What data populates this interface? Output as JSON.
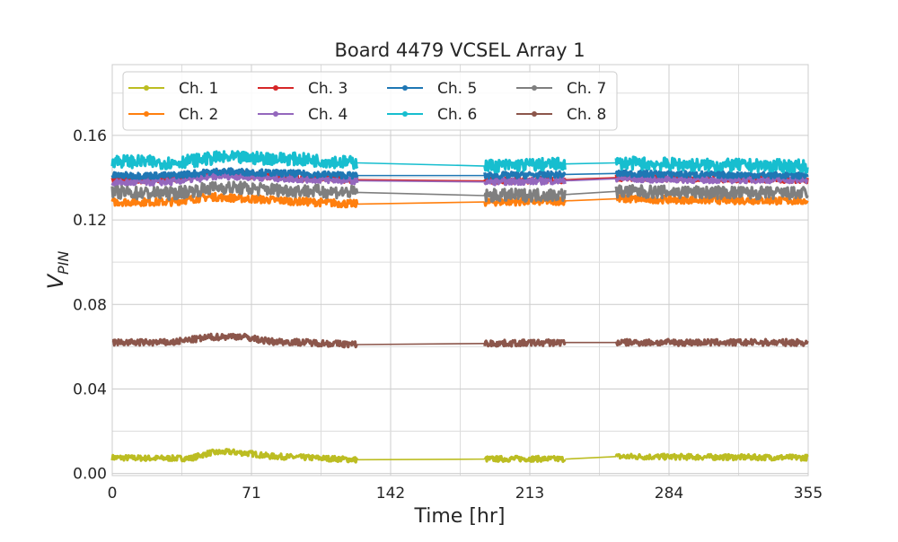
{
  "chart_data": {
    "type": "line",
    "title": "Board 4479 VCSEL Array 1",
    "xlabel": "Time [hr]",
    "ylabel_main": "V",
    "ylabel_sub": "PIN",
    "xlim": [
      0,
      355
    ],
    "ylim": [
      -0.001,
      0.1935
    ],
    "xticks": [
      0,
      71,
      142,
      213,
      284,
      355
    ],
    "yticks": [
      0.0,
      0.04,
      0.08,
      0.12,
      0.16
    ],
    "ytick_labels": [
      "0.00",
      "0.04",
      "0.08",
      "0.12",
      "0.16"
    ],
    "grid": true,
    "legend": "top-left",
    "segments": [
      [
        0,
        125
      ],
      [
        190,
        231
      ],
      [
        257,
        355
      ]
    ],
    "series": [
      {
        "name": "Ch. 1",
        "color": "#bcbd22",
        "band": 0.0013,
        "x": [
          0,
          20,
          40,
          50,
          60,
          70,
          80,
          100,
          125,
          190,
          210,
          231,
          257,
          300,
          355
        ],
        "y": [
          0.0075,
          0.0072,
          0.0072,
          0.0098,
          0.0102,
          0.0095,
          0.0082,
          0.0075,
          0.0065,
          0.0068,
          0.007,
          0.0068,
          0.008,
          0.0078,
          0.0075
        ]
      },
      {
        "name": "Ch. 2",
        "color": "#ff7f0e",
        "band": 0.0018,
        "x": [
          0,
          30,
          50,
          70,
          90,
          125,
          190,
          231,
          257,
          300,
          355
        ],
        "y": [
          0.1285,
          0.1285,
          0.131,
          0.13,
          0.129,
          0.1275,
          0.1285,
          0.129,
          0.13,
          0.1295,
          0.129
        ]
      },
      {
        "name": "Ch. 3",
        "color": "#d62728",
        "band": 0.0015,
        "x": [
          0,
          30,
          55,
          90,
          125,
          190,
          231,
          257,
          300,
          355
        ],
        "y": [
          0.139,
          0.139,
          0.142,
          0.14,
          0.139,
          0.1385,
          0.139,
          0.14,
          0.1395,
          0.139
        ]
      },
      {
        "name": "Ch. 4",
        "color": "#9467bd",
        "band": 0.0015,
        "x": [
          0,
          30,
          55,
          90,
          125,
          190,
          231,
          257,
          300,
          355
        ],
        "y": [
          0.1375,
          0.138,
          0.141,
          0.1395,
          0.1385,
          0.138,
          0.1385,
          0.1395,
          0.139,
          0.139
        ]
      },
      {
        "name": "Ch. 5",
        "color": "#1f77b4",
        "band": 0.0015,
        "x": [
          0,
          30,
          55,
          90,
          125,
          190,
          231,
          257,
          300,
          355
        ],
        "y": [
          0.141,
          0.141,
          0.143,
          0.142,
          0.141,
          0.141,
          0.1415,
          0.142,
          0.1415,
          0.141
        ]
      },
      {
        "name": "Ch. 6",
        "color": "#17becf",
        "band": 0.003,
        "x": [
          0,
          30,
          55,
          90,
          125,
          190,
          231,
          257,
          300,
          355
        ],
        "y": [
          0.148,
          0.147,
          0.1495,
          0.149,
          0.147,
          0.1455,
          0.1465,
          0.147,
          0.146,
          0.1455
        ]
      },
      {
        "name": "Ch. 7",
        "color": "#7f7f7f",
        "band": 0.003,
        "x": [
          0,
          30,
          55,
          90,
          125,
          190,
          231,
          257,
          300,
          355
        ],
        "y": [
          0.133,
          0.1325,
          0.1355,
          0.134,
          0.133,
          0.1315,
          0.132,
          0.1335,
          0.133,
          0.1325
        ]
      },
      {
        "name": "Ch. 8",
        "color": "#8c564b",
        "band": 0.0015,
        "x": [
          0,
          30,
          50,
          65,
          80,
          100,
          125,
          190,
          231,
          257,
          300,
          355
        ],
        "y": [
          0.062,
          0.062,
          0.0645,
          0.065,
          0.0625,
          0.062,
          0.061,
          0.0615,
          0.062,
          0.062,
          0.062,
          0.062
        ]
      }
    ]
  }
}
